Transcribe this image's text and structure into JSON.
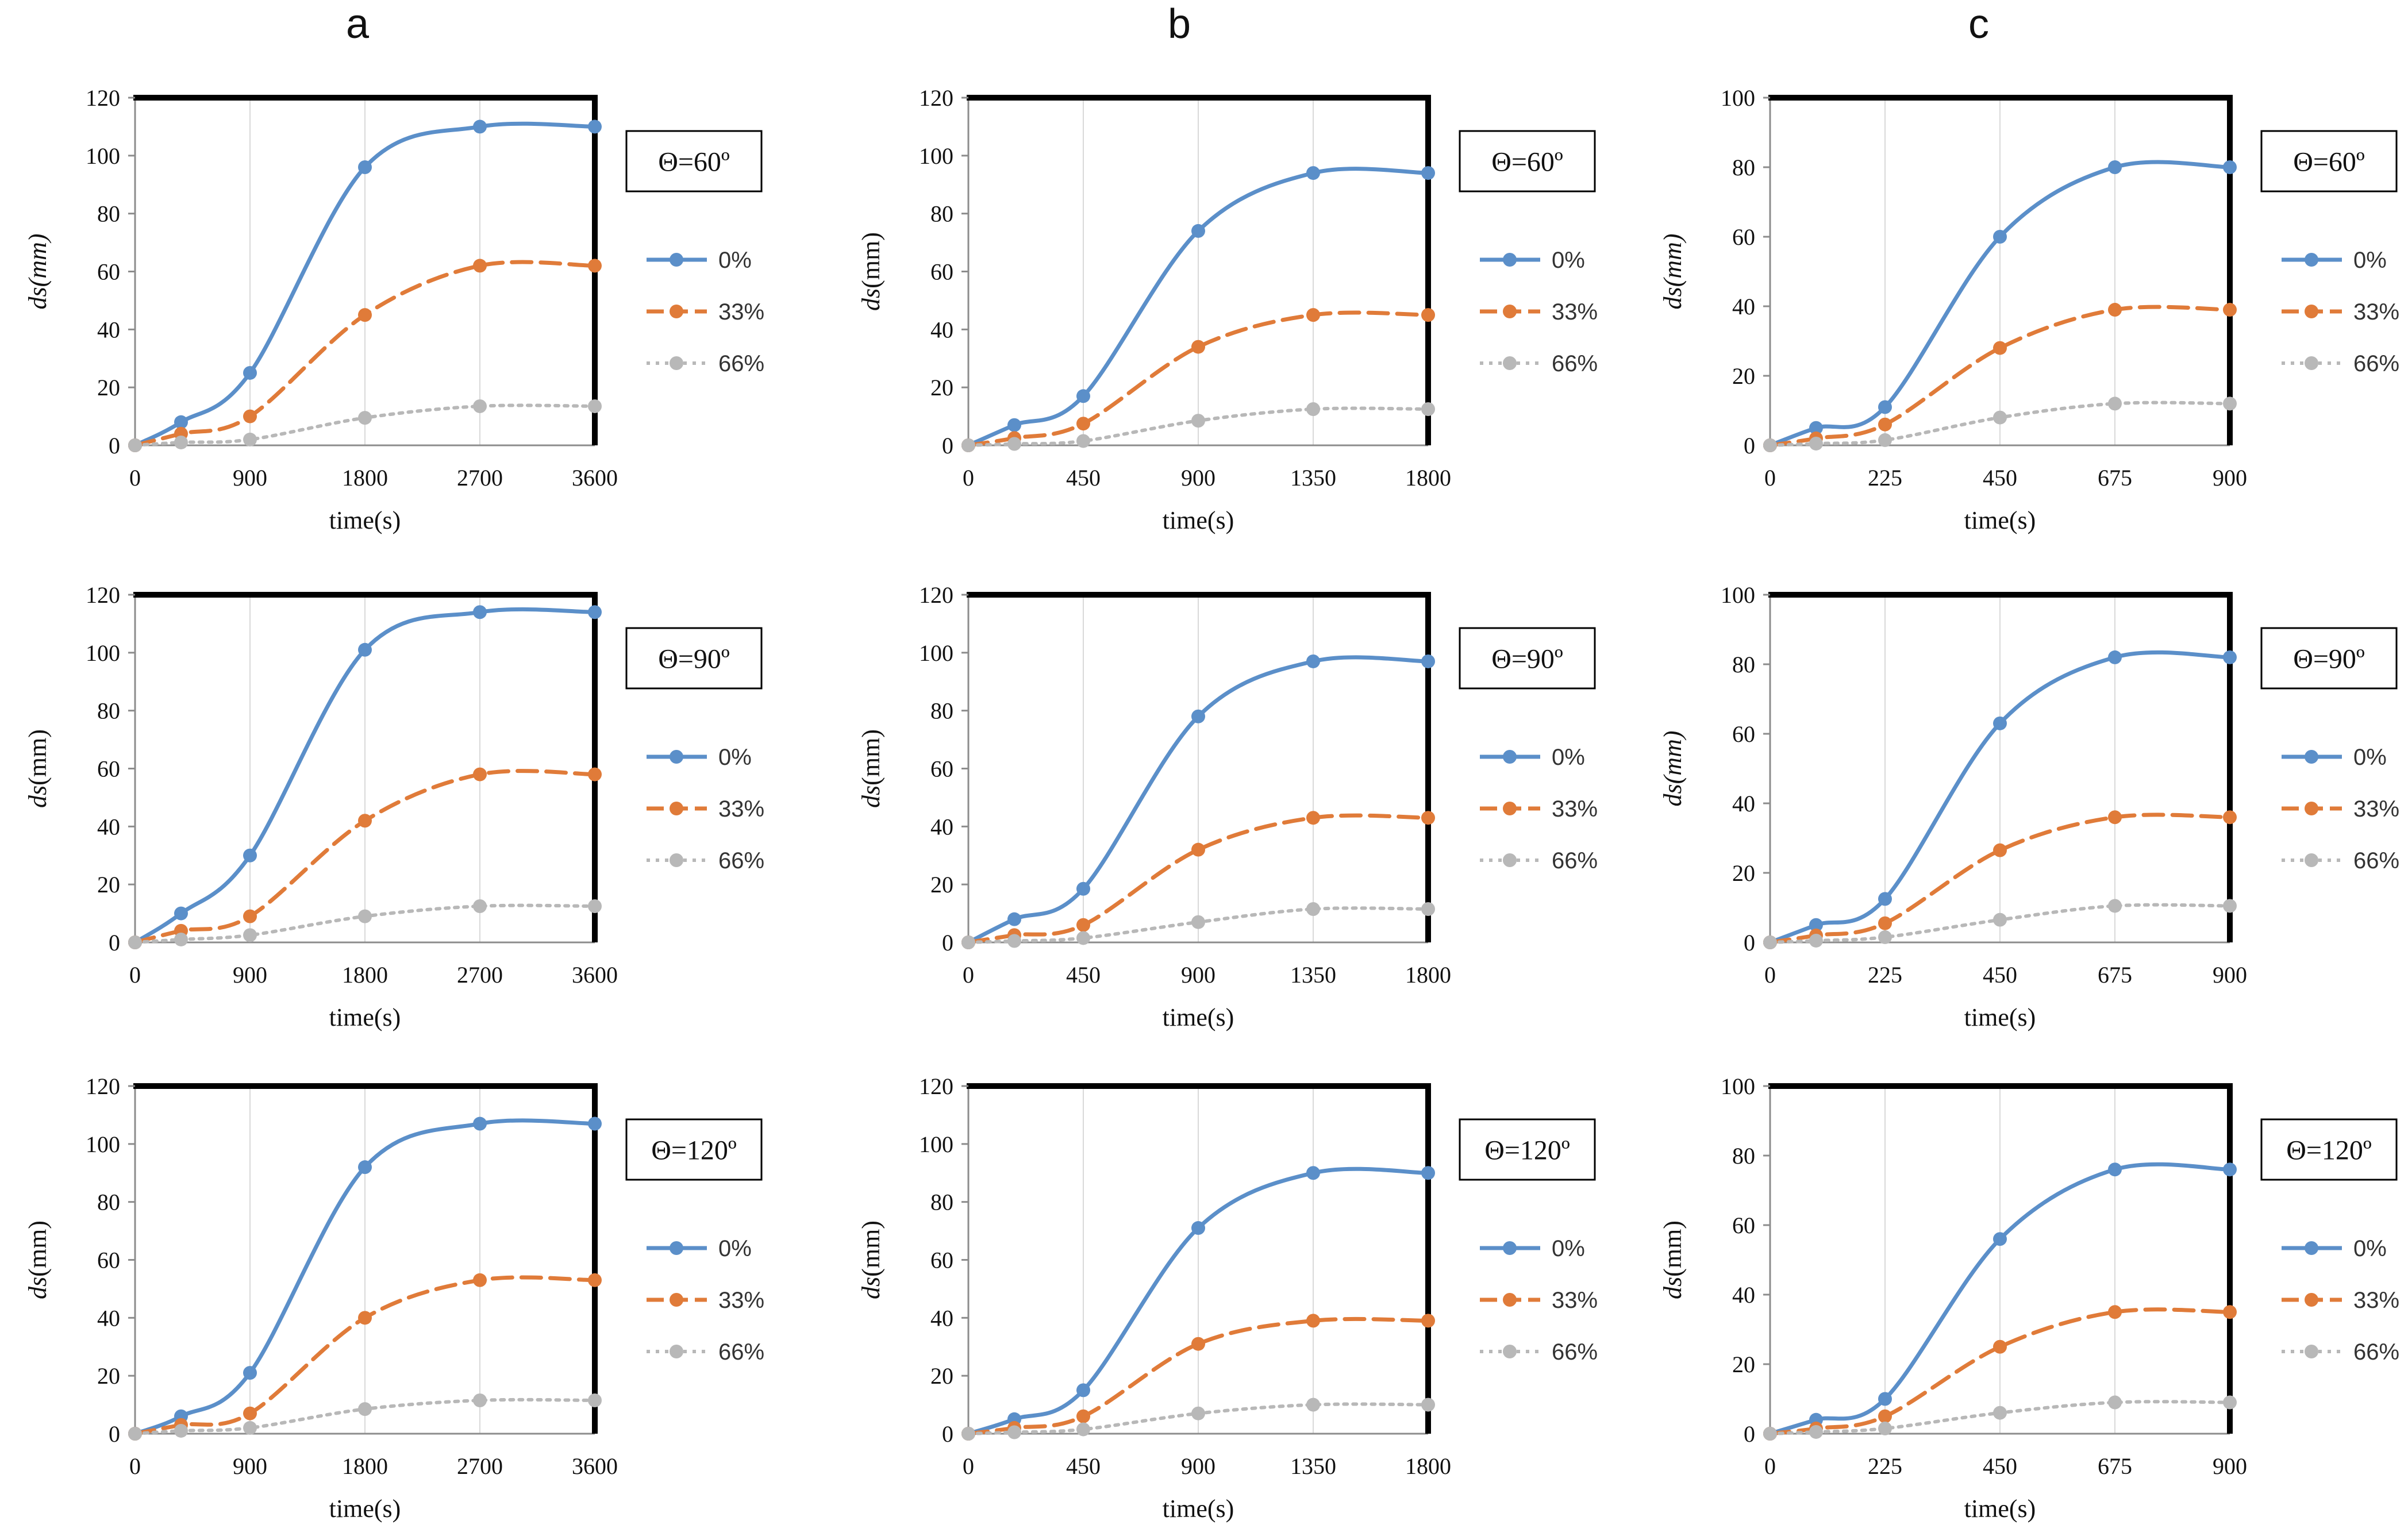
{
  "figure": {
    "column_titles": [
      "a",
      "b",
      "c"
    ],
    "legend_labels": [
      "0%",
      "33%",
      "66%"
    ],
    "series_colors": [
      "#5b8fc9",
      "#e07b39",
      "#b8b8b8"
    ]
  },
  "chart_data": [
    {
      "id": "a1",
      "type": "line",
      "column": "a",
      "theta": "Θ=60º",
      "xlabel": "time(s)",
      "ylabel": {
        "italic": "ds",
        "rest": "(mm)",
        "rest_italic": true
      },
      "x_ticks": [
        "0",
        "900",
        "1800",
        "2700",
        "3600"
      ],
      "x_tick_values": [
        0,
        900,
        1800,
        2700,
        3600
      ],
      "xlim": [
        0,
        3600
      ],
      "y_ticks": [
        "0",
        "20",
        "40",
        "60",
        "80",
        "100",
        "120"
      ],
      "y_tick_values": [
        0,
        20,
        40,
        60,
        80,
        100,
        120
      ],
      "ylim": [
        0,
        120
      ],
      "x": [
        0,
        360,
        900,
        1800,
        2700,
        3600
      ],
      "series": [
        {
          "name": "0%",
          "values": [
            0,
            8,
            25,
            96,
            110,
            110
          ]
        },
        {
          "name": "33%",
          "values": [
            0,
            4,
            10,
            45,
            62,
            62
          ]
        },
        {
          "name": "66%",
          "values": [
            0,
            1,
            2,
            9.5,
            13.5,
            13.5
          ]
        }
      ]
    },
    {
      "id": "b1",
      "type": "line",
      "column": "b",
      "theta": "Θ=60º",
      "xlabel": "time(s)",
      "ylabel": {
        "italic": "ds",
        "rest": "(mm)",
        "rest_italic": false
      },
      "x_ticks": [
        "0",
        "450",
        "900",
        "1350",
        "1800"
      ],
      "x_tick_values": [
        0,
        450,
        900,
        1350,
        1800
      ],
      "xlim": [
        0,
        1800
      ],
      "y_ticks": [
        "0",
        "20",
        "40",
        "60",
        "80",
        "100",
        "120"
      ],
      "y_tick_values": [
        0,
        20,
        40,
        60,
        80,
        100,
        120
      ],
      "ylim": [
        0,
        120
      ],
      "x": [
        0,
        180,
        450,
        900,
        1350,
        1800
      ],
      "series": [
        {
          "name": "0%",
          "values": [
            0,
            7,
            17,
            74,
            94,
            94
          ]
        },
        {
          "name": "33%",
          "values": [
            0,
            2.5,
            7.5,
            34,
            45,
            45
          ]
        },
        {
          "name": "66%",
          "values": [
            0,
            0.5,
            1.5,
            8.5,
            12.5,
            12.5
          ]
        }
      ]
    },
    {
      "id": "c1",
      "type": "line",
      "column": "c",
      "theta": "Θ=60º",
      "xlabel": "time(s)",
      "ylabel": {
        "italic": "ds",
        "rest": "(mm)",
        "rest_italic": true
      },
      "x_ticks": [
        "0",
        "225",
        "450",
        "675",
        "900"
      ],
      "x_tick_values": [
        0,
        225,
        450,
        675,
        900
      ],
      "xlim": [
        0,
        900
      ],
      "y_ticks": [
        "0",
        "20",
        "40",
        "60",
        "80",
        "100"
      ],
      "y_tick_values": [
        0,
        20,
        40,
        60,
        80,
        100
      ],
      "ylim": [
        0,
        100
      ],
      "x": [
        0,
        90,
        225,
        450,
        675,
        900
      ],
      "series": [
        {
          "name": "0%",
          "values": [
            0,
            5,
            11,
            60,
            80,
            80
          ]
        },
        {
          "name": "33%",
          "values": [
            0,
            2,
            6,
            28,
            39,
            39
          ]
        },
        {
          "name": "66%",
          "values": [
            0,
            0.5,
            1.5,
            8,
            12,
            12
          ]
        }
      ]
    },
    {
      "id": "a2",
      "type": "line",
      "column": "a",
      "theta": "Θ=90º",
      "xlabel": "time(s)",
      "ylabel": {
        "italic": "ds",
        "rest": "(mm)",
        "rest_italic": false
      },
      "x_ticks": [
        "0",
        "900",
        "1800",
        "2700",
        "3600"
      ],
      "x_tick_values": [
        0,
        900,
        1800,
        2700,
        3600
      ],
      "xlim": [
        0,
        3600
      ],
      "y_ticks": [
        "0",
        "20",
        "40",
        "60",
        "80",
        "100",
        "120"
      ],
      "y_tick_values": [
        0,
        20,
        40,
        60,
        80,
        100,
        120
      ],
      "ylim": [
        0,
        120
      ],
      "x": [
        0,
        360,
        900,
        1800,
        2700,
        3600
      ],
      "series": [
        {
          "name": "0%",
          "values": [
            0,
            10,
            30,
            101,
            114,
            114
          ]
        },
        {
          "name": "33%",
          "values": [
            0,
            4,
            9,
            42,
            58,
            58
          ]
        },
        {
          "name": "66%",
          "values": [
            0,
            1,
            2.5,
            9,
            12.5,
            12.5
          ]
        }
      ]
    },
    {
      "id": "b2",
      "type": "line",
      "column": "b",
      "theta": "Θ=90º",
      "xlabel": "time(s)",
      "ylabel": {
        "italic": "ds",
        "rest": "(mm)",
        "rest_italic": false
      },
      "x_ticks": [
        "0",
        "450",
        "900",
        "1350",
        "1800"
      ],
      "x_tick_values": [
        0,
        450,
        900,
        1350,
        1800
      ],
      "xlim": [
        0,
        1800
      ],
      "y_ticks": [
        "0",
        "20",
        "40",
        "60",
        "80",
        "100",
        "120"
      ],
      "y_tick_values": [
        0,
        20,
        40,
        60,
        80,
        100,
        120
      ],
      "ylim": [
        0,
        120
      ],
      "x": [
        0,
        180,
        450,
        900,
        1350,
        1800
      ],
      "series": [
        {
          "name": "0%",
          "values": [
            0,
            8,
            18.5,
            78,
            97,
            97
          ]
        },
        {
          "name": "33%",
          "values": [
            0,
            2.5,
            6,
            32,
            43,
            43
          ]
        },
        {
          "name": "66%",
          "values": [
            0,
            0.5,
            1.5,
            7,
            11.5,
            11.5
          ]
        }
      ]
    },
    {
      "id": "c2",
      "type": "line",
      "column": "c",
      "theta": "Θ=90º",
      "xlabel": "time(s)",
      "ylabel": {
        "italic": "ds",
        "rest": "(mm)",
        "rest_italic": true
      },
      "x_ticks": [
        "0",
        "225",
        "450",
        "675",
        "900"
      ],
      "x_tick_values": [
        0,
        225,
        450,
        675,
        900
      ],
      "xlim": [
        0,
        900
      ],
      "y_ticks": [
        "0",
        "20",
        "40",
        "60",
        "80",
        "100"
      ],
      "y_tick_values": [
        0,
        20,
        40,
        60,
        80,
        100
      ],
      "ylim": [
        0,
        100
      ],
      "x": [
        0,
        90,
        225,
        450,
        675,
        900
      ],
      "series": [
        {
          "name": "0%",
          "values": [
            0,
            5,
            12.5,
            63,
            82,
            82
          ]
        },
        {
          "name": "33%",
          "values": [
            0,
            2,
            5.5,
            26.5,
            36,
            36
          ]
        },
        {
          "name": "66%",
          "values": [
            0,
            0.5,
            1.5,
            6.5,
            10.5,
            10.5
          ]
        }
      ]
    },
    {
      "id": "a3",
      "type": "line",
      "column": "a",
      "theta": "Θ=120º",
      "xlabel": "time(s)",
      "ylabel": {
        "italic": "ds",
        "rest": "(mm)",
        "rest_italic": false
      },
      "x_ticks": [
        "0",
        "900",
        "1800",
        "2700",
        "3600"
      ],
      "x_tick_values": [
        0,
        900,
        1800,
        2700,
        3600
      ],
      "xlim": [
        0,
        3600
      ],
      "y_ticks": [
        "0",
        "20",
        "40",
        "60",
        "80",
        "100",
        "120"
      ],
      "y_tick_values": [
        0,
        20,
        40,
        60,
        80,
        100,
        120
      ],
      "ylim": [
        0,
        120
      ],
      "x": [
        0,
        360,
        900,
        1800,
        2700,
        3600
      ],
      "series": [
        {
          "name": "0%",
          "values": [
            0,
            6,
            21,
            92,
            107,
            107
          ]
        },
        {
          "name": "33%",
          "values": [
            0,
            3,
            7,
            40,
            53,
            53
          ]
        },
        {
          "name": "66%",
          "values": [
            0,
            1,
            2,
            8.5,
            11.5,
            11.5
          ]
        }
      ]
    },
    {
      "id": "b3",
      "type": "line",
      "column": "b",
      "theta": "Θ=120º",
      "xlabel": "time(s)",
      "ylabel": {
        "italic": "ds",
        "rest": "(mm)",
        "rest_italic": false
      },
      "x_ticks": [
        "0",
        "450",
        "900",
        "1350",
        "1800"
      ],
      "x_tick_values": [
        0,
        450,
        900,
        1350,
        1800
      ],
      "xlim": [
        0,
        1800
      ],
      "y_ticks": [
        "0",
        "20",
        "40",
        "60",
        "80",
        "100",
        "120"
      ],
      "y_tick_values": [
        0,
        20,
        40,
        60,
        80,
        100,
        120
      ],
      "ylim": [
        0,
        120
      ],
      "x": [
        0,
        180,
        450,
        900,
        1350,
        1800
      ],
      "series": [
        {
          "name": "0%",
          "values": [
            0,
            5,
            15,
            71,
            90,
            90
          ]
        },
        {
          "name": "33%",
          "values": [
            0,
            2,
            6,
            31,
            39,
            39
          ]
        },
        {
          "name": "66%",
          "values": [
            0,
            0.5,
            1.5,
            7,
            10,
            10
          ]
        }
      ]
    },
    {
      "id": "c3",
      "type": "line",
      "column": "c",
      "theta": "Θ=120º",
      "xlabel": "time(s)",
      "ylabel": {
        "italic": "ds",
        "rest": "(mm)",
        "rest_italic": false
      },
      "x_ticks": [
        "0",
        "225",
        "450",
        "675",
        "900"
      ],
      "x_tick_values": [
        0,
        225,
        450,
        675,
        900
      ],
      "xlim": [
        0,
        900
      ],
      "y_ticks": [
        "0",
        "20",
        "40",
        "60",
        "80",
        "100"
      ],
      "y_tick_values": [
        0,
        20,
        40,
        60,
        80,
        100
      ],
      "ylim": [
        0,
        100
      ],
      "x": [
        0,
        90,
        225,
        450,
        675,
        900
      ],
      "series": [
        {
          "name": "0%",
          "values": [
            0,
            4,
            10,
            56,
            76,
            76
          ]
        },
        {
          "name": "33%",
          "values": [
            0,
            1.5,
            5,
            25,
            35,
            35
          ]
        },
        {
          "name": "66%",
          "values": [
            0,
            0.5,
            1.5,
            6,
            9,
            9
          ]
        }
      ]
    }
  ]
}
